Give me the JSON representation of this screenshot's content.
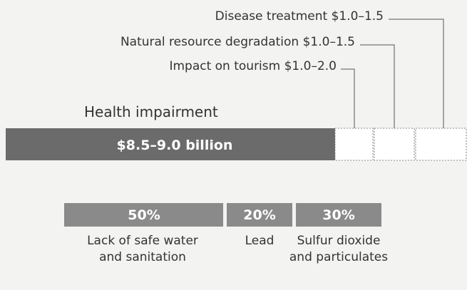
{
  "cost_items": [
    {
      "label": "Disease treatment $1.0–1.5"
    },
    {
      "label": "Natural resource degradation $1.0–1.5"
    },
    {
      "label": "Impact on tourism $1.0–2.0"
    }
  ],
  "main": {
    "title": "Health impairment",
    "amount": "$8.5–9.0 billion"
  },
  "shares": [
    {
      "share": "50%",
      "lines": [
        "Lack of safe water",
        "and sanitation"
      ]
    },
    {
      "share": "20%",
      "lines": [
        "Lead"
      ]
    },
    {
      "share": "30%",
      "lines": [
        "Sulfur dioxide",
        "and particulates"
      ]
    }
  ]
}
